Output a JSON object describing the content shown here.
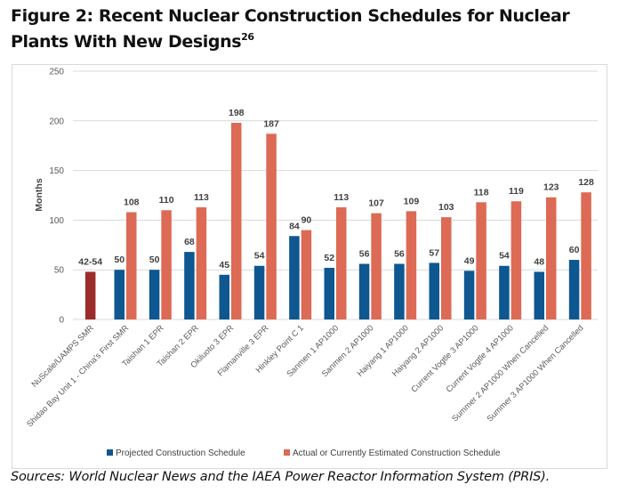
{
  "figure": {
    "title": "Figure 2: Recent Nuclear Construction Schedules for Nuclear Plants With New Designs",
    "footnote_ref": "26",
    "source": "Sources: World Nuclear News and the IAEA Power Reactor Information System (PRIS)."
  },
  "colors": {
    "projected": "#0E5790",
    "actual": "#DC6A55",
    "nuscale": "#9B2C2A",
    "grid": "#d9d9d9"
  },
  "chart_data": {
    "type": "bar",
    "title": "Recent Nuclear Construction Schedules for Nuclear Plants With New Designs",
    "xlabel": "",
    "ylabel": "Months",
    "ylim": [
      0,
      250
    ],
    "yticks": [
      0,
      50,
      100,
      150,
      200,
      250
    ],
    "grid": true,
    "legend_position": "bottom",
    "categories": [
      "NuScale/UAMPS SMR",
      "Shidao Bay Unit 1 - China's First SMR",
      "Taishan 1 EPR",
      "Taishan 2 EPR",
      "Okiluoto 3 EPR",
      "Flamanville 3 EPR",
      "Hinkley Point C 1",
      "Sanmen 1 AP1000",
      "Sanmen 2 AP1000",
      "Haiyang 1 AP1000",
      "Haiyang 2 AP1000",
      "Current Vogtle 3 AP1000",
      "Current Vogtle 4 AP1000",
      "Summer 2 AP1000 When Cancelled",
      "Summer 3 AP1000 When Cancelled"
    ],
    "series": [
      {
        "name": "Projected Construction Schedule",
        "values": [
          48,
          50,
          50,
          68,
          45,
          54,
          84,
          52,
          56,
          56,
          57,
          49,
          54,
          48,
          60
        ],
        "labels": [
          "42-54",
          "50",
          "50",
          "68",
          "45",
          "54",
          "84",
          "52",
          "56",
          "56",
          "57",
          "49",
          "54",
          "48",
          "60"
        ]
      },
      {
        "name": "Actual or Currently Estimated Construction Schedule",
        "values": [
          null,
          108,
          110,
          113,
          198,
          187,
          90,
          113,
          107,
          109,
          103,
          118,
          119,
          123,
          128
        ],
        "labels": [
          null,
          "108",
          "110",
          "113",
          "198",
          "187",
          "90",
          "113",
          "107",
          "109",
          "103",
          "118",
          "119",
          "123",
          "128"
        ]
      }
    ],
    "notes": "NuScale/UAMPS SMR shows a single projected range bar labeled 42-54 in a distinct dark red color."
  }
}
